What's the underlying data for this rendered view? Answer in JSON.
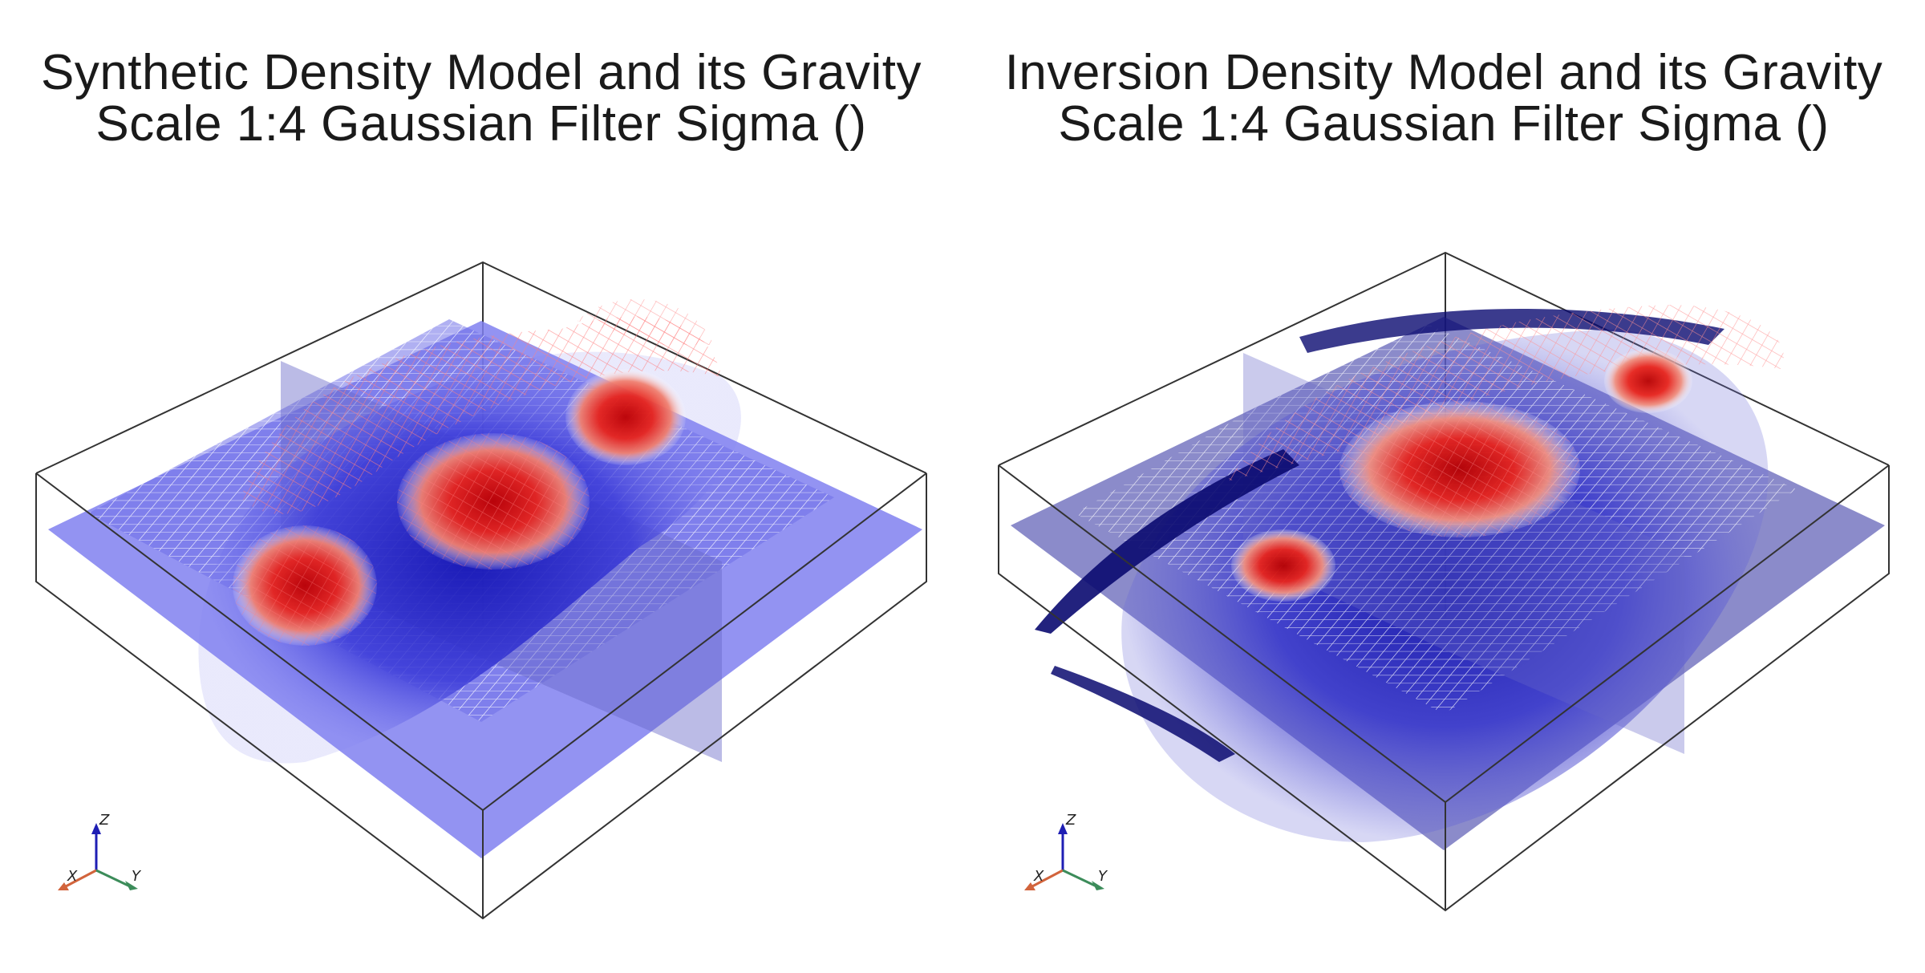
{
  "left_panel": {
    "title_line1": "Synthetic Density Model and its Gravity",
    "title_line2": "Scale 1:4 Gaussian Filter Sigma ()"
  },
  "right_panel": {
    "title_line1": "Inversion Density Model and its Gravity",
    "title_line2": "Scale 1:4 Gaussian Filter Sigma ()"
  },
  "axes_widget": {
    "x": "X",
    "y": "Y",
    "z": "Z"
  },
  "colors": {
    "positive_density": "#e0201a",
    "negative_density": "#1a1ad0",
    "slice_plane": "#8080f0",
    "grid_line": "#ffffff",
    "bounding_box": "#333333",
    "axis_x": "#d2643c",
    "axis_y": "#3c8c5a",
    "axis_z": "#1e1eb4"
  }
}
